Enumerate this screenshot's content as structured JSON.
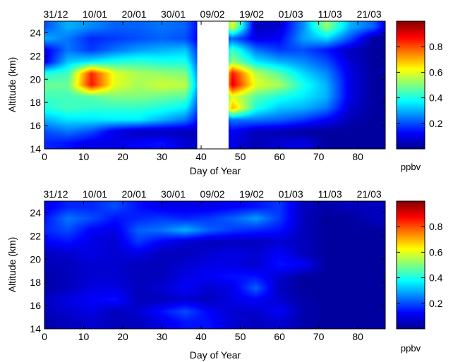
{
  "colors": {
    "colormap": "jet",
    "data_gap_fill": "#ffffff",
    "frame": "#000000"
  },
  "chart_data": [
    {
      "type": "heatmap",
      "panel": "top",
      "colorscale": "jet",
      "xlabel": "Day of Year",
      "ylabel": "Altitude (km)",
      "xlim": [
        0,
        87
      ],
      "ylim": [
        14,
        25
      ],
      "x_ticks": [
        0,
        10,
        20,
        30,
        40,
        50,
        60,
        70,
        80
      ],
      "x_tick_labels": [
        "0",
        "10",
        "20",
        "30",
        "40",
        "50",
        "60",
        "70",
        "80"
      ],
      "y_ticks": [
        14,
        16,
        18,
        20,
        22,
        24
      ],
      "y_tick_labels": [
        "14",
        "16",
        "18",
        "20",
        "22",
        "24"
      ],
      "top_axis_dates": [
        {
          "day": 0,
          "label": "31/12"
        },
        {
          "day": 10,
          "label": "10/01"
        },
        {
          "day": 20,
          "label": "20/01"
        },
        {
          "day": 30,
          "label": "30/01"
        },
        {
          "day": 40,
          "label": "09/02"
        },
        {
          "day": 50,
          "label": "19/02"
        },
        {
          "day": 60,
          "label": "01/03"
        },
        {
          "day": 70,
          "label": "11/03"
        },
        {
          "day": 80,
          "label": "21/03"
        }
      ],
      "data_gap_days": [
        39,
        47
      ],
      "colorbar": {
        "range": [
          0,
          1
        ],
        "ticks": [
          0.2,
          0.4,
          0.6,
          0.8
        ],
        "tick_labels": [
          "0.2",
          "0.4",
          "0.6",
          "0.8"
        ],
        "unit": "ppbv"
      },
      "x": [
        0,
        6,
        12,
        18,
        24,
        30,
        36,
        42,
        48,
        54,
        60,
        66,
        72,
        78,
        84,
        87
      ],
      "y": [
        14.5,
        15.5,
        16.5,
        17.5,
        18.5,
        19.5,
        20.5,
        21.5,
        22.5,
        23.5,
        24.5
      ],
      "z": [
        [
          0.16,
          0.14,
          0.1,
          0.1,
          0.12,
          0.14,
          0.08,
          0.05,
          0.1,
          0.05,
          0.08,
          0.1,
          0.03,
          0.03,
          0.03,
          0.03
        ],
        [
          0.2,
          0.24,
          0.2,
          0.1,
          0.06,
          0.06,
          0.06,
          0.05,
          0.12,
          0.06,
          0.05,
          0.03,
          0.03,
          0.03,
          0.03,
          0.03
        ],
        [
          0.3,
          0.35,
          0.35,
          0.36,
          0.36,
          0.3,
          0.24,
          0.05,
          0.24,
          0.24,
          0.22,
          0.18,
          0.12,
          0.05,
          0.03,
          0.03
        ],
        [
          0.4,
          0.44,
          0.42,
          0.42,
          0.42,
          0.4,
          0.36,
          0.05,
          0.7,
          0.4,
          0.32,
          0.3,
          0.24,
          0.08,
          0.03,
          0.03
        ],
        [
          0.44,
          0.44,
          0.46,
          0.5,
          0.5,
          0.48,
          0.46,
          0.05,
          0.6,
          0.46,
          0.4,
          0.36,
          0.3,
          0.1,
          0.03,
          0.03
        ],
        [
          0.48,
          0.48,
          0.86,
          0.6,
          0.54,
          0.58,
          0.56,
          0.05,
          0.9,
          0.6,
          0.54,
          0.4,
          0.3,
          0.1,
          0.03,
          0.03
        ],
        [
          0.4,
          0.44,
          0.84,
          0.6,
          0.54,
          0.52,
          0.5,
          0.05,
          0.86,
          0.56,
          0.46,
          0.34,
          0.26,
          0.1,
          0.03,
          0.03
        ],
        [
          0.1,
          0.32,
          0.36,
          0.4,
          0.42,
          0.4,
          0.4,
          0.05,
          0.52,
          0.36,
          0.3,
          0.26,
          0.2,
          0.08,
          0.03,
          0.03
        ],
        [
          0.1,
          0.24,
          0.18,
          0.24,
          0.28,
          0.3,
          0.32,
          0.05,
          0.44,
          0.24,
          0.18,
          0.2,
          0.14,
          0.06,
          0.03,
          0.03
        ],
        [
          0.3,
          0.24,
          0.16,
          0.18,
          0.2,
          0.22,
          0.2,
          0.05,
          0.22,
          0.1,
          0.12,
          0.28,
          0.34,
          0.2,
          0.03,
          0.03
        ],
        [
          0.2,
          0.3,
          0.26,
          0.22,
          0.22,
          0.24,
          0.22,
          0.05,
          0.6,
          0.06,
          0.08,
          0.26,
          0.52,
          0.3,
          0.22,
          0.1
        ]
      ]
    },
    {
      "type": "heatmap",
      "panel": "bottom",
      "colorscale": "jet",
      "xlabel": "Day of Year",
      "ylabel": "Altitude (km)",
      "xlim": [
        0,
        87
      ],
      "ylim": [
        14,
        25
      ],
      "x_ticks": [
        0,
        10,
        20,
        30,
        40,
        50,
        60,
        70,
        80
      ],
      "x_tick_labels": [
        "0",
        "10",
        "20",
        "30",
        "40",
        "50",
        "60",
        "70",
        "80"
      ],
      "y_ticks": [
        14,
        16,
        18,
        20,
        22,
        24
      ],
      "y_tick_labels": [
        "14",
        "16",
        "18",
        "20",
        "22",
        "24"
      ],
      "top_axis_dates": [
        {
          "day": 0,
          "label": "31/12"
        },
        {
          "day": 10,
          "label": "10/01"
        },
        {
          "day": 20,
          "label": "20/01"
        },
        {
          "day": 30,
          "label": "30/01"
        },
        {
          "day": 40,
          "label": "09/02"
        },
        {
          "day": 50,
          "label": "19/02"
        },
        {
          "day": 60,
          "label": "01/03"
        },
        {
          "day": 70,
          "label": "11/03"
        },
        {
          "day": 80,
          "label": "21/03"
        }
      ],
      "colorbar": {
        "range": [
          0,
          1
        ],
        "ticks": [
          0.2,
          0.4,
          0.6,
          0.8
        ],
        "tick_labels": [
          "0.2",
          "0.4",
          "0.6",
          "0.8"
        ],
        "unit": "ppbv"
      },
      "x": [
        0,
        6,
        12,
        18,
        24,
        30,
        36,
        42,
        48,
        54,
        60,
        66,
        72,
        78,
        84,
        87
      ],
      "y": [
        14.5,
        15.5,
        16.5,
        17.5,
        18.5,
        19.5,
        20.5,
        21.5,
        22.5,
        23.5,
        24.5
      ],
      "z": [
        [
          0.04,
          0.06,
          0.08,
          0.06,
          0.06,
          0.1,
          0.14,
          0.14,
          0.08,
          0.06,
          0.08,
          0.04,
          0.03,
          0.03,
          0.03,
          0.03
        ],
        [
          0.06,
          0.08,
          0.1,
          0.06,
          0.08,
          0.14,
          0.2,
          0.12,
          0.08,
          0.08,
          0.12,
          0.05,
          0.03,
          0.03,
          0.03,
          0.03
        ],
        [
          0.06,
          0.1,
          0.12,
          0.14,
          0.06,
          0.06,
          0.08,
          0.06,
          0.1,
          0.12,
          0.08,
          0.04,
          0.03,
          0.03,
          0.03,
          0.03
        ],
        [
          0.04,
          0.06,
          0.1,
          0.1,
          0.06,
          0.08,
          0.12,
          0.08,
          0.1,
          0.22,
          0.06,
          0.03,
          0.03,
          0.03,
          0.03,
          0.03
        ],
        [
          0.04,
          0.06,
          0.08,
          0.08,
          0.06,
          0.06,
          0.1,
          0.12,
          0.14,
          0.14,
          0.08,
          0.03,
          0.03,
          0.03,
          0.03,
          0.03
        ],
        [
          0.06,
          0.06,
          0.08,
          0.08,
          0.06,
          0.06,
          0.08,
          0.1,
          0.1,
          0.08,
          0.14,
          0.12,
          0.03,
          0.03,
          0.03,
          0.03
        ],
        [
          0.06,
          0.08,
          0.1,
          0.08,
          0.1,
          0.06,
          0.06,
          0.08,
          0.1,
          0.08,
          0.12,
          0.06,
          0.03,
          0.03,
          0.03,
          0.03
        ],
        [
          0.12,
          0.14,
          0.1,
          0.08,
          0.18,
          0.12,
          0.08,
          0.06,
          0.06,
          0.06,
          0.08,
          0.06,
          0.03,
          0.03,
          0.03,
          0.03
        ],
        [
          0.16,
          0.2,
          0.12,
          0.1,
          0.22,
          0.24,
          0.3,
          0.22,
          0.18,
          0.16,
          0.14,
          0.06,
          0.03,
          0.03,
          0.03,
          0.03
        ],
        [
          0.14,
          0.24,
          0.2,
          0.14,
          0.16,
          0.18,
          0.16,
          0.18,
          0.22,
          0.28,
          0.18,
          0.06,
          0.03,
          0.03,
          0.06,
          0.06
        ],
        [
          0.1,
          0.16,
          0.16,
          0.2,
          0.14,
          0.1,
          0.1,
          0.1,
          0.12,
          0.14,
          0.18,
          0.06,
          0.04,
          0.06,
          0.06,
          0.06
        ]
      ]
    }
  ]
}
